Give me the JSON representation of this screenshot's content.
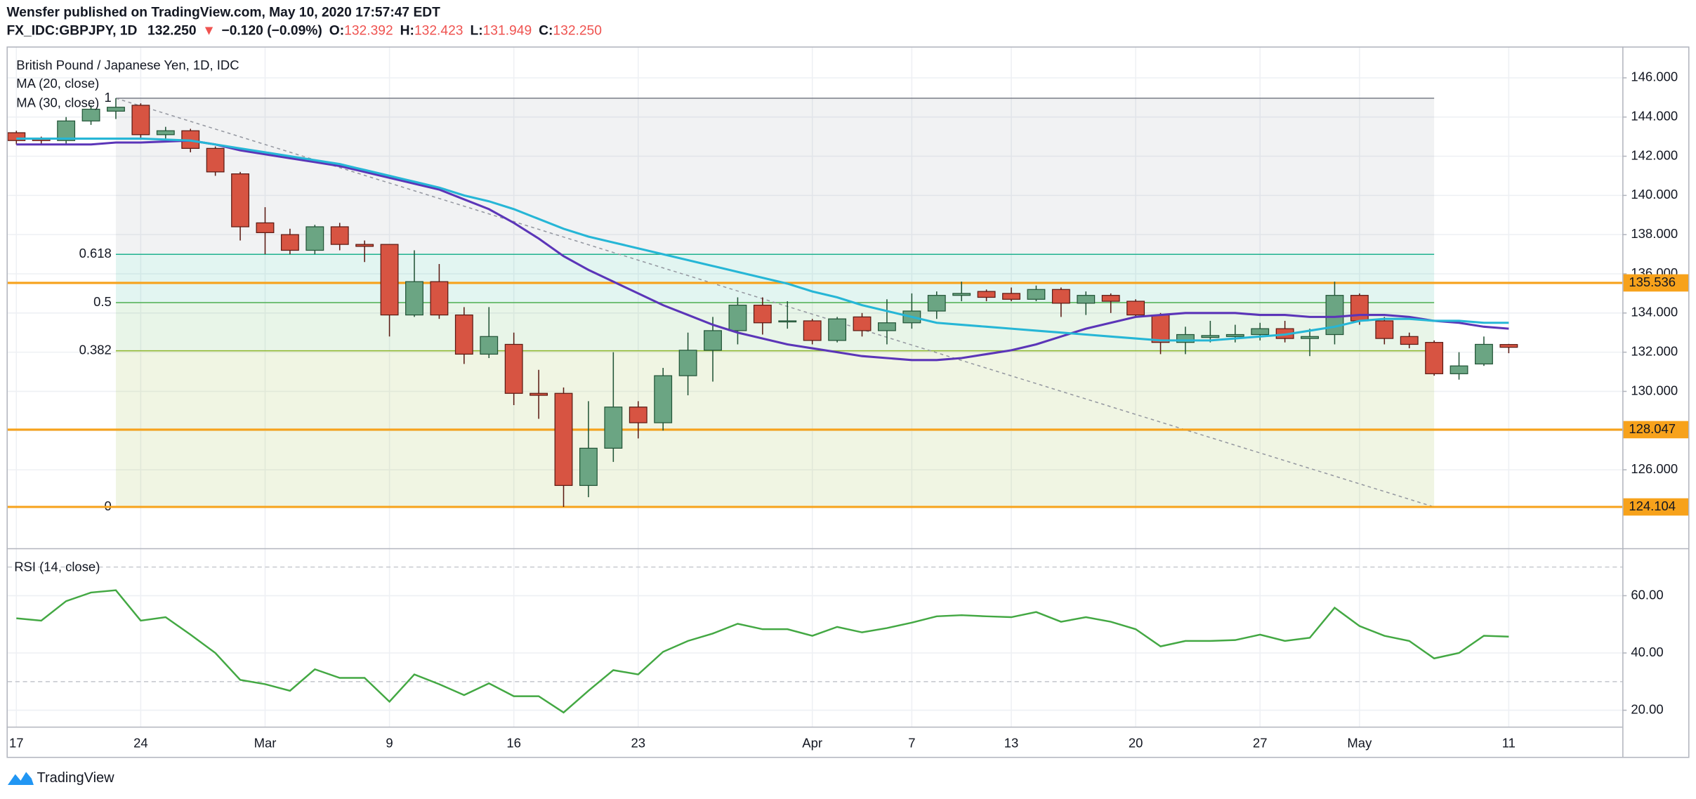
{
  "header": {
    "publisher": "Wensfer published on TradingView.com, May 10, 2020 17:57:47 EDT",
    "symbol": "FX_IDC:GBPJPY, 1D",
    "last": "132.250",
    "arrow": "▼",
    "change": "−0.120 (−0.09%)",
    "ohlc": [
      [
        "O:",
        "132.392"
      ],
      [
        "H:",
        "132.423"
      ],
      [
        "L:",
        "131.949"
      ],
      [
        "C:",
        "132.250"
      ]
    ]
  },
  "chart_data": [
    {
      "type": "candlestick",
      "title": "British Pound / Japanese Yen, 1D, IDC",
      "categories": [
        "17",
        null,
        null,
        null,
        null,
        "24",
        null,
        null,
        null,
        null,
        "Mar",
        null,
        null,
        null,
        null,
        "9",
        null,
        null,
        null,
        null,
        "16",
        null,
        null,
        null,
        null,
        "23",
        null,
        null,
        null,
        null,
        null,
        null,
        "Apr",
        null,
        null,
        null,
        "7",
        null,
        null,
        null,
        "13",
        null,
        null,
        null,
        null,
        "20",
        null,
        null,
        null,
        null,
        "27",
        null,
        null,
        null,
        "May",
        null,
        null,
        null,
        null,
        null,
        "11"
      ],
      "open": [
        143.2,
        142.9,
        142.8,
        143.8,
        144.3,
        144.6,
        143.1,
        143.3,
        142.4,
        141.1,
        138.6,
        138.0,
        137.2,
        138.4,
        137.5,
        137.5,
        133.9,
        135.6,
        133.9,
        131.9,
        132.4,
        129.9,
        129.9,
        125.2,
        127.1,
        129.2,
        128.4,
        130.8,
        132.1,
        133.1,
        134.4,
        133.55,
        133.6,
        132.6,
        133.8,
        133.1,
        133.5,
        134.1,
        134.9,
        135.1,
        135.0,
        134.7,
        135.2,
        134.5,
        134.9,
        134.6,
        133.9,
        132.5,
        132.75,
        132.8,
        132.9,
        133.2,
        132.7,
        132.9,
        134.9,
        133.6,
        132.8,
        132.5,
        130.9,
        131.4,
        132.392
      ],
      "high": [
        143.3,
        143.0,
        144.0,
        144.6,
        144.96,
        144.7,
        143.5,
        143.4,
        142.5,
        141.2,
        139.4,
        138.3,
        138.5,
        138.6,
        137.7,
        137.5,
        137.2,
        136.5,
        134.3,
        134.3,
        133.0,
        131.1,
        130.2,
        129.5,
        132.0,
        129.5,
        131.2,
        133.0,
        133.8,
        134.8,
        134.8,
        134.6,
        133.7,
        133.8,
        134.0,
        134.7,
        135.0,
        135.1,
        135.6,
        135.2,
        135.3,
        135.4,
        135.3,
        135.1,
        135.0,
        134.7,
        134.0,
        133.3,
        133.6,
        133.4,
        133.5,
        133.6,
        133.2,
        135.6,
        135.0,
        133.8,
        133.0,
        132.6,
        132.0,
        132.8,
        132.423
      ],
      "low": [
        142.6,
        142.6,
        142.6,
        143.6,
        143.9,
        142.9,
        142.9,
        142.2,
        141.0,
        137.7,
        137.0,
        137.0,
        137.0,
        137.2,
        136.6,
        132.8,
        133.8,
        133.7,
        131.4,
        131.7,
        129.3,
        128.6,
        124.104,
        124.6,
        126.4,
        127.6,
        128.0,
        129.8,
        130.5,
        132.4,
        132.9,
        133.2,
        132.4,
        132.5,
        132.8,
        132.4,
        133.2,
        133.7,
        134.6,
        134.6,
        134.6,
        134.6,
        133.8,
        133.9,
        134.0,
        133.8,
        131.9,
        131.9,
        132.5,
        132.5,
        132.6,
        132.5,
        131.8,
        132.4,
        133.4,
        132.4,
        132.2,
        130.8,
        130.6,
        131.3,
        131.949
      ],
      "close": [
        142.8,
        142.8,
        143.8,
        144.4,
        144.5,
        143.1,
        143.3,
        142.4,
        141.2,
        138.4,
        138.1,
        137.2,
        138.4,
        137.5,
        137.4,
        133.9,
        135.6,
        133.9,
        131.9,
        132.8,
        129.9,
        129.8,
        125.2,
        127.1,
        129.2,
        128.4,
        130.8,
        132.1,
        133.1,
        134.4,
        133.5,
        133.6,
        132.6,
        133.7,
        133.1,
        133.5,
        134.1,
        134.9,
        135.0,
        134.8,
        134.7,
        135.2,
        134.5,
        134.9,
        134.6,
        133.9,
        132.5,
        132.9,
        132.85,
        132.9,
        133.2,
        132.7,
        132.8,
        134.9,
        133.6,
        132.7,
        132.4,
        130.9,
        131.3,
        132.4,
        132.25
      ],
      "up_color": "#6ba583",
      "up_border": "#225437",
      "down_color": "#d75442",
      "down_border": "#5b1a13",
      "series": [
        {
          "name": "MA (20, close)",
          "color": "#5b35b8",
          "values": [
            142.6,
            142.6,
            142.6,
            142.6,
            142.7,
            142.7,
            142.75,
            142.8,
            142.6,
            142.3,
            142.1,
            141.9,
            141.7,
            141.5,
            141.2,
            140.9,
            140.6,
            140.3,
            139.8,
            139.3,
            138.6,
            137.8,
            136.9,
            136.2,
            135.6,
            135.0,
            134.4,
            133.9,
            133.4,
            133.0,
            132.7,
            132.4,
            132.2,
            132.0,
            131.8,
            131.7,
            131.6,
            131.6,
            131.7,
            131.9,
            132.1,
            132.4,
            132.8,
            133.2,
            133.5,
            133.8,
            133.9,
            134.0,
            134.0,
            134.0,
            133.9,
            133.9,
            133.8,
            133.8,
            133.9,
            133.9,
            133.8,
            133.6,
            133.5,
            133.3,
            133.2
          ]
        },
        {
          "name": "MA (30, close)",
          "color": "#26b6d6",
          "values": [
            142.9,
            142.9,
            142.9,
            142.9,
            142.9,
            142.9,
            142.85,
            142.8,
            142.6,
            142.4,
            142.2,
            142.0,
            141.8,
            141.6,
            141.3,
            141.0,
            140.7,
            140.4,
            140.0,
            139.7,
            139.3,
            138.8,
            138.3,
            137.9,
            137.6,
            137.3,
            137.0,
            136.7,
            136.4,
            136.1,
            135.8,
            135.5,
            135.1,
            134.8,
            134.4,
            134.1,
            133.8,
            133.5,
            133.4,
            133.3,
            133.2,
            133.1,
            133.0,
            132.9,
            132.8,
            132.7,
            132.6,
            132.6,
            132.6,
            132.7,
            132.8,
            132.9,
            133.1,
            133.3,
            133.6,
            133.7,
            133.7,
            133.6,
            133.6,
            133.5,
            133.5
          ]
        }
      ],
      "fib": {
        "levels": [
          1,
          0.618,
          0.5,
          0.382,
          0
        ],
        "colors": [
          "#787b86",
          "#20b28f",
          "#4caf50",
          "#8bb52a",
          "#787b86"
        ],
        "high": 144.96,
        "low": 124.104
      },
      "hlines": [
        {
          "value": 135.536,
          "label": "135.536"
        },
        {
          "value": 128.047,
          "label": "128.047"
        },
        {
          "value": 124.104,
          "label": "124.104"
        }
      ],
      "hline_color": "#f7a21b",
      "ylim": [
        122,
        147.6
      ],
      "yticks": [
        {
          "value": 126,
          "label": "126.000"
        },
        {
          "value": 128,
          "label": "128.000"
        },
        {
          "value": 130,
          "label": "130.000"
        },
        {
          "value": 132,
          "label": "132.000"
        },
        {
          "value": 134,
          "label": "134.000"
        },
        {
          "value": 136,
          "label": "136.000"
        },
        {
          "value": 138,
          "label": "138.000"
        },
        {
          "value": 140,
          "label": "140.000"
        },
        {
          "value": 142,
          "label": "142.000"
        },
        {
          "value": 144,
          "label": "144.000"
        },
        {
          "value": 146,
          "label": "146.000"
        }
      ],
      "grid": true
    },
    {
      "type": "line",
      "title": "RSI (14, close)",
      "color": "#43a843",
      "values": [
        52.1,
        51.3,
        58.1,
        61.1,
        61.9,
        51.3,
        52.5,
        46.4,
        40.0,
        30.6,
        29.1,
        26.8,
        34.3,
        31.3,
        31.3,
        23.0,
        32.5,
        29.1,
        25.3,
        29.4,
        24.9,
        24.9,
        19.2,
        26.8,
        34.0,
        32.5,
        40.4,
        44.2,
        46.8,
        50.2,
        48.3,
        48.3,
        46.0,
        49.1,
        47.2,
        48.7,
        50.6,
        52.8,
        53.2,
        52.8,
        52.5,
        54.3,
        50.9,
        52.5,
        50.9,
        48.3,
        42.3,
        44.2,
        44.2,
        44.5,
        46.4,
        44.2,
        45.3,
        55.8,
        49.4,
        46.0,
        44.2,
        38.1,
        40.0,
        46.0,
        45.7
      ],
      "bands": [
        70,
        30
      ],
      "ylim": [
        14.3,
        76.6
      ],
      "yticks": [
        {
          "value": 20,
          "label": "20.00"
        },
        {
          "value": 40,
          "label": "40.00"
        },
        {
          "value": 60,
          "label": "60.00"
        }
      ],
      "grid": true
    }
  ],
  "footer": {
    "brand": "TradingView"
  }
}
